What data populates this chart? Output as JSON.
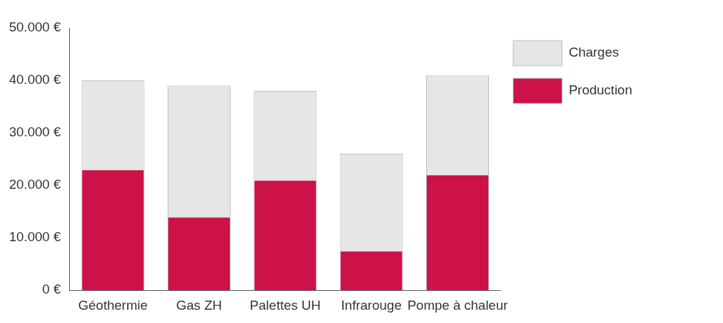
{
  "chart_data": {
    "type": "bar",
    "stacked": true,
    "categories": [
      "Géothermie",
      "Gas ZH",
      "Palettes UH",
      "Infrarouge",
      "Pompe à chaleur"
    ],
    "series": [
      {
        "name": "Production",
        "color": "#cc1249",
        "values": [
          23000,
          14000,
          21000,
          7500,
          22000
        ]
      },
      {
        "name": "Charges",
        "color": "#e6e6e6",
        "values": [
          17000,
          25000,
          17000,
          18500,
          19000
        ]
      }
    ],
    "ylim": [
      0,
      50000
    ],
    "yticks": [
      {
        "value": 0,
        "label": "0 €"
      },
      {
        "value": 10000,
        "label": "10.000 €"
      },
      {
        "value": 20000,
        "label": "20.000 €"
      },
      {
        "value": 30000,
        "label": "30.000 €"
      },
      {
        "value": 40000,
        "label": "40.000 €"
      },
      {
        "value": 50000,
        "label": "50.000 €"
      }
    ],
    "grid": false,
    "legend": "top right"
  }
}
